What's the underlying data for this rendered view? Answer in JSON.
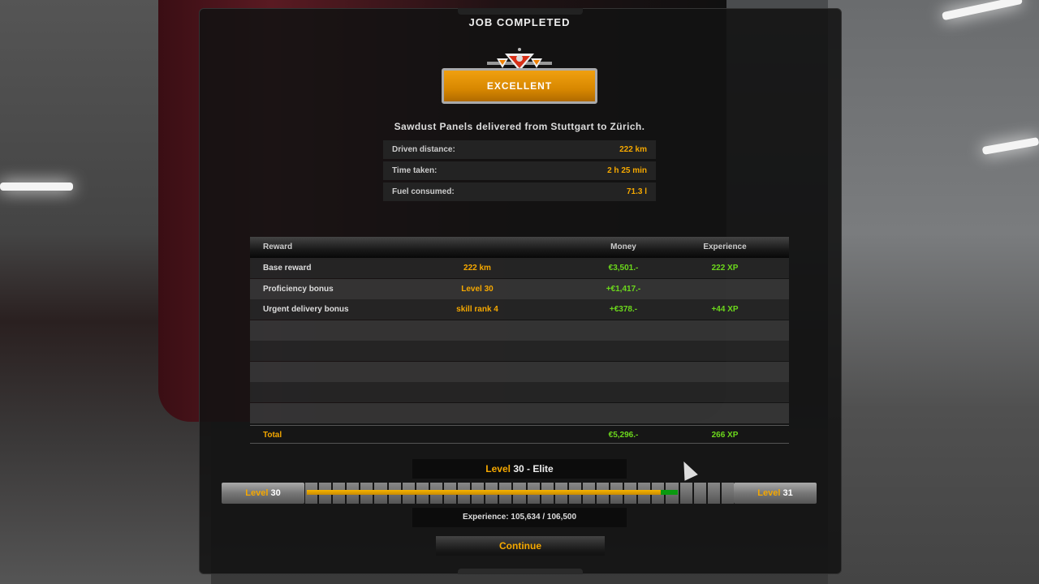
{
  "title": "JOB COMPLETED",
  "rating": "EXCELLENT",
  "delivery_text": "Sawdust Panels delivered from Stuttgart to Zürich.",
  "stats": [
    {
      "label": "Driven distance:",
      "value": "222 km"
    },
    {
      "label": "Time taken:",
      "value": "2 h 25 min"
    },
    {
      "label": "Fuel consumed:",
      "value": "71.3 l"
    }
  ],
  "table": {
    "headers": {
      "reward": "Reward",
      "money": "Money",
      "experience": "Experience"
    },
    "rows": [
      {
        "reward": "Base reward",
        "detail": "222 km",
        "money": "€3,501.-",
        "xp": "222 XP"
      },
      {
        "reward": "Proficiency bonus",
        "detail": "Level 30",
        "money": "+€1,417.-",
        "xp": ""
      },
      {
        "reward": "Urgent delivery bonus",
        "detail": "skill rank 4",
        "money": "+€378.-",
        "xp": "+44 XP"
      }
    ],
    "empty_rows": 5,
    "total": {
      "label": "Total",
      "money": "€5,296.-",
      "xp": "266 XP"
    }
  },
  "level": {
    "word": "Level",
    "current": "30",
    "title_suffix": " - Elite",
    "next": "31",
    "experience_text": "Experience: 105,634 / 106,500",
    "progress_before": 0.83,
    "progress_after": 0.87
  },
  "continue_label": "Continue",
  "colors": {
    "accent": "#f5a800",
    "positive": "#6cd81c",
    "xp_gain": "#0a9a10"
  }
}
